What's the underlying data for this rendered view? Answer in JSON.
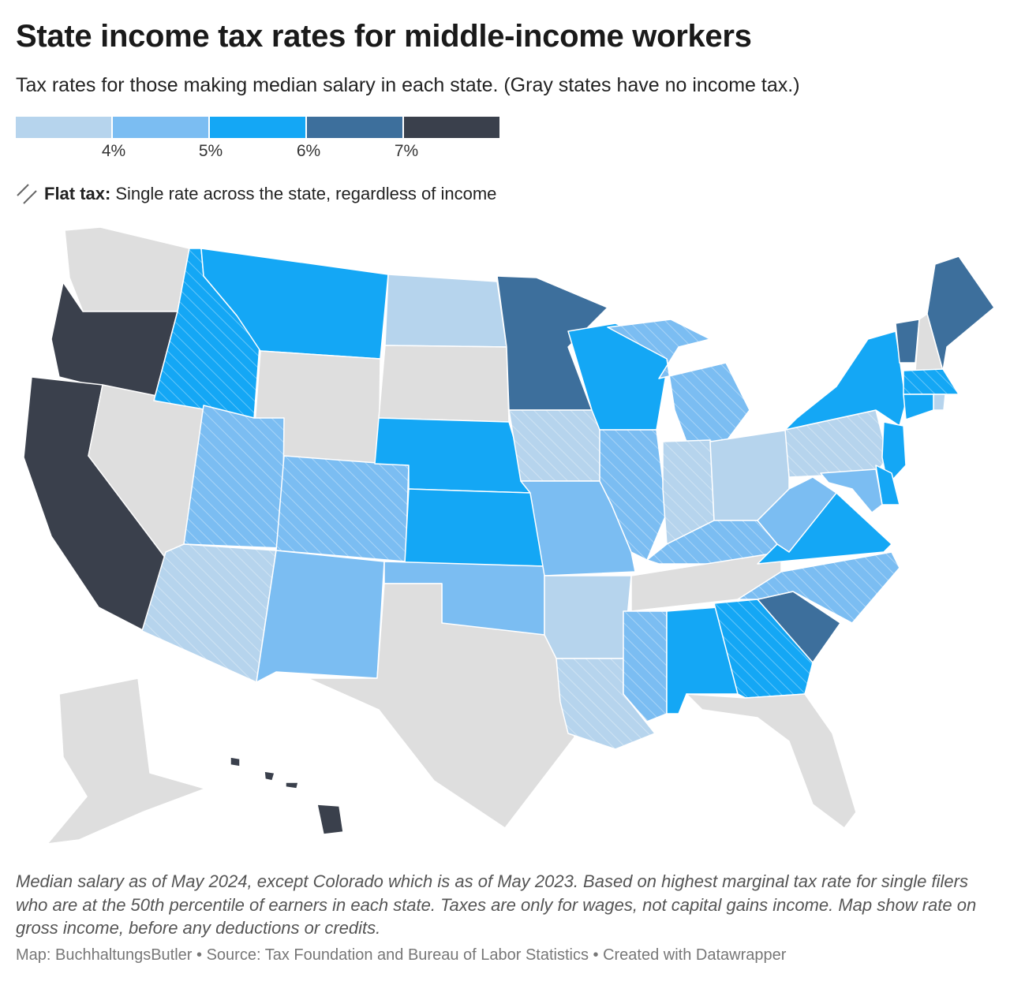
{
  "title": "State income tax rates for middle-income workers",
  "subtitle": "Tax rates for those making median salary in each state. (Gray states have no income tax.)",
  "legend": {
    "colors": [
      "#b6d4ed",
      "#7bbdf2",
      "#14a7f5",
      "#3d6f9c",
      "#3a404c"
    ],
    "ticks": [
      "4%",
      "5%",
      "6%",
      "7%"
    ],
    "no_tax_color": "#dedede"
  },
  "flat_note": {
    "label": "Flat tax:",
    "text": "Single rate across the state, regardless of income"
  },
  "notes": "Median salary as of May 2024, except Colorado which is as of May 2023. Based on highest marginal tax rate for single filers who are at the 50th percentile of earners in each state. Taxes are only for wages, not capital gains income. Map show rate on gross income, before any deductions or credits.",
  "footer": "Map: BuchhaltungsButler • Source: Tax Foundation and Bureau of Labor Statistics  • Created with Datawrapper",
  "states": [
    {
      "abbr": "WA",
      "bin": "none",
      "flat": false
    },
    {
      "abbr": "OR",
      "bin": "7+",
      "flat": false
    },
    {
      "abbr": "CA",
      "bin": "7+",
      "flat": false
    },
    {
      "abbr": "NV",
      "bin": "none",
      "flat": false
    },
    {
      "abbr": "ID",
      "bin": "5-6",
      "flat": true
    },
    {
      "abbr": "MT",
      "bin": "5-6",
      "flat": false
    },
    {
      "abbr": "WY",
      "bin": "none",
      "flat": false
    },
    {
      "abbr": "UT",
      "bin": "4-5",
      "flat": true
    },
    {
      "abbr": "CO",
      "bin": "4-5",
      "flat": true
    },
    {
      "abbr": "AZ",
      "bin": "<4",
      "flat": true
    },
    {
      "abbr": "NM",
      "bin": "4-5",
      "flat": false
    },
    {
      "abbr": "ND",
      "bin": "<4",
      "flat": false
    },
    {
      "abbr": "SD",
      "bin": "none",
      "flat": false
    },
    {
      "abbr": "NE",
      "bin": "5-6",
      "flat": false
    },
    {
      "abbr": "KS",
      "bin": "5-6",
      "flat": false
    },
    {
      "abbr": "OK",
      "bin": "4-5",
      "flat": false
    },
    {
      "abbr": "TX",
      "bin": "none",
      "flat": false
    },
    {
      "abbr": "MN",
      "bin": "6-7",
      "flat": false
    },
    {
      "abbr": "IA",
      "bin": "<4",
      "flat": true
    },
    {
      "abbr": "MO",
      "bin": "4-5",
      "flat": false
    },
    {
      "abbr": "AR",
      "bin": "<4",
      "flat": false
    },
    {
      "abbr": "LA",
      "bin": "<4",
      "flat": true
    },
    {
      "abbr": "WI",
      "bin": "5-6",
      "flat": false
    },
    {
      "abbr": "IL",
      "bin": "4-5",
      "flat": true
    },
    {
      "abbr": "MI",
      "bin": "4-5",
      "flat": true
    },
    {
      "abbr": "IN",
      "bin": "<4",
      "flat": true
    },
    {
      "abbr": "OH",
      "bin": "<4",
      "flat": false
    },
    {
      "abbr": "KY",
      "bin": "4-5",
      "flat": true
    },
    {
      "abbr": "TN",
      "bin": "none",
      "flat": false
    },
    {
      "abbr": "MS",
      "bin": "4-5",
      "flat": true
    },
    {
      "abbr": "AL",
      "bin": "5-6",
      "flat": false
    },
    {
      "abbr": "GA",
      "bin": "5-6",
      "flat": true
    },
    {
      "abbr": "FL",
      "bin": "none",
      "flat": false
    },
    {
      "abbr": "SC",
      "bin": "6-7",
      "flat": false
    },
    {
      "abbr": "NC",
      "bin": "4-5",
      "flat": true
    },
    {
      "abbr": "VA",
      "bin": "5-6",
      "flat": false
    },
    {
      "abbr": "WV",
      "bin": "4-5",
      "flat": false
    },
    {
      "abbr": "PA",
      "bin": "<4",
      "flat": true
    },
    {
      "abbr": "NY",
      "bin": "5-6",
      "flat": false
    },
    {
      "abbr": "VT",
      "bin": "6-7",
      "flat": false
    },
    {
      "abbr": "NH",
      "bin": "none",
      "flat": false
    },
    {
      "abbr": "ME",
      "bin": "6-7",
      "flat": false
    },
    {
      "abbr": "MA",
      "bin": "5-6",
      "flat": true
    },
    {
      "abbr": "RI",
      "bin": "<4",
      "flat": false
    },
    {
      "abbr": "CT",
      "bin": "5-6",
      "flat": false
    },
    {
      "abbr": "NJ",
      "bin": "5-6",
      "flat": false
    },
    {
      "abbr": "DE",
      "bin": "5-6",
      "flat": false
    },
    {
      "abbr": "MD",
      "bin": "4-5",
      "flat": false
    },
    {
      "abbr": "AK",
      "bin": "none",
      "flat": false
    },
    {
      "abbr": "HI",
      "bin": "7+",
      "flat": false
    }
  ]
}
